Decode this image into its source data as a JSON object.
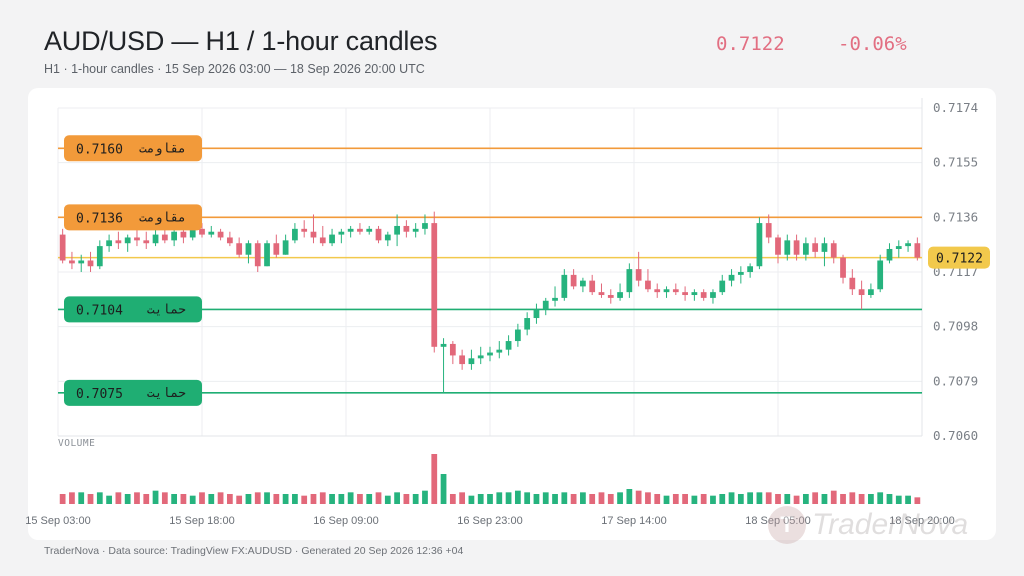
{
  "header": {
    "title": "AUD/USD — H1 / 1-hour candles",
    "subtitle": "H1 · 1-hour candles · 15 Sep 2026 03:00 — 18 Sep 2026 20:00 UTC",
    "last_price": "0.7122",
    "change_pct": "-0.06%"
  },
  "footer": {
    "text": "TraderNova · Data source: TradingView FX:AUDUSD · Generated 20 Sep 2026 12:36 +04"
  },
  "watermark": {
    "text": "TraderNova"
  },
  "colors": {
    "up": "#26b37e",
    "down": "#e2687a",
    "resistance": "#f29a3a",
    "support": "#1fae73",
    "current": "#f2c94c"
  },
  "chart_data": {
    "type": "candlestick",
    "symbol": "AUD/USD",
    "interval": "H1",
    "ylim": [
      0.706,
      0.7174
    ],
    "y_ticks": [
      "0.7174",
      "0.7155",
      "0.7136",
      "0.7117",
      "0.7098",
      "0.7079",
      "0.7060"
    ],
    "x_ticks": [
      "15 Sep 03:00",
      "15 Sep 18:00",
      "16 Sep 09:00",
      "16 Sep 23:00",
      "17 Sep 14:00",
      "18 Sep 05:00",
      "18 Sep 20:00"
    ],
    "current_price": {
      "label": "0.7122",
      "value": 0.7122
    },
    "levels": [
      {
        "type": "resistance",
        "label_ar": "مقاومت",
        "price": "0.7160",
        "value": 0.716
      },
      {
        "type": "resistance",
        "label_ar": "مقاومت",
        "price": "0.7136",
        "value": 0.7136
      },
      {
        "type": "support",
        "label_ar": "حمایت",
        "price": "0.7104",
        "value": 0.7104
      },
      {
        "type": "support",
        "label_ar": "حمایت",
        "price": "0.7075",
        "value": 0.7075
      }
    ],
    "volume_label": "VOLUME",
    "candles": [
      {
        "o": 0.713,
        "h": 0.7132,
        "l": 0.712,
        "c": 0.7121,
        "v": 6
      },
      {
        "o": 0.7121,
        "h": 0.7124,
        "l": 0.7118,
        "c": 0.712,
        "v": 7
      },
      {
        "o": 0.712,
        "h": 0.7123,
        "l": 0.7117,
        "c": 0.7121,
        "v": 7
      },
      {
        "o": 0.7121,
        "h": 0.7124,
        "l": 0.7117,
        "c": 0.7119,
        "v": 6
      },
      {
        "o": 0.7119,
        "h": 0.7128,
        "l": 0.7118,
        "c": 0.7126,
        "v": 7
      },
      {
        "o": 0.7126,
        "h": 0.713,
        "l": 0.7124,
        "c": 0.7128,
        "v": 5
      },
      {
        "o": 0.7128,
        "h": 0.7131,
        "l": 0.7125,
        "c": 0.7127,
        "v": 7
      },
      {
        "o": 0.7127,
        "h": 0.713,
        "l": 0.7124,
        "c": 0.7129,
        "v": 6
      },
      {
        "o": 0.7129,
        "h": 0.7132,
        "l": 0.7126,
        "c": 0.7128,
        "v": 7
      },
      {
        "o": 0.7128,
        "h": 0.7131,
        "l": 0.7125,
        "c": 0.7127,
        "v": 6
      },
      {
        "o": 0.7127,
        "h": 0.7132,
        "l": 0.7126,
        "c": 0.713,
        "v": 8
      },
      {
        "o": 0.713,
        "h": 0.7133,
        "l": 0.7127,
        "c": 0.7128,
        "v": 7
      },
      {
        "o": 0.7128,
        "h": 0.7132,
        "l": 0.7126,
        "c": 0.7131,
        "v": 6
      },
      {
        "o": 0.7131,
        "h": 0.7134,
        "l": 0.7127,
        "c": 0.7129,
        "v": 6
      },
      {
        "o": 0.7129,
        "h": 0.7133,
        "l": 0.7128,
        "c": 0.7132,
        "v": 5
      },
      {
        "o": 0.7132,
        "h": 0.7134,
        "l": 0.7129,
        "c": 0.713,
        "v": 7
      },
      {
        "o": 0.713,
        "h": 0.7133,
        "l": 0.7129,
        "c": 0.7131,
        "v": 6
      },
      {
        "o": 0.7131,
        "h": 0.7132,
        "l": 0.7128,
        "c": 0.7129,
        "v": 7
      },
      {
        "o": 0.7129,
        "h": 0.7131,
        "l": 0.7126,
        "c": 0.7127,
        "v": 6
      },
      {
        "o": 0.7127,
        "h": 0.7129,
        "l": 0.7122,
        "c": 0.7123,
        "v": 5
      },
      {
        "o": 0.7123,
        "h": 0.7128,
        "l": 0.712,
        "c": 0.7127,
        "v": 6
      },
      {
        "o": 0.7127,
        "h": 0.7128,
        "l": 0.7117,
        "c": 0.7119,
        "v": 7
      },
      {
        "o": 0.7119,
        "h": 0.7128,
        "l": 0.7119,
        "c": 0.7127,
        "v": 7
      },
      {
        "o": 0.7127,
        "h": 0.713,
        "l": 0.7122,
        "c": 0.7123,
        "v": 6
      },
      {
        "o": 0.7123,
        "h": 0.713,
        "l": 0.7123,
        "c": 0.7128,
        "v": 6
      },
      {
        "o": 0.7128,
        "h": 0.7134,
        "l": 0.7127,
        "c": 0.7132,
        "v": 6
      },
      {
        "o": 0.7132,
        "h": 0.7135,
        "l": 0.7129,
        "c": 0.7131,
        "v": 5
      },
      {
        "o": 0.7131,
        "h": 0.7137,
        "l": 0.7127,
        "c": 0.7129,
        "v": 6
      },
      {
        "o": 0.7129,
        "h": 0.7133,
        "l": 0.7126,
        "c": 0.7127,
        "v": 7
      },
      {
        "o": 0.7127,
        "h": 0.7132,
        "l": 0.7126,
        "c": 0.713,
        "v": 6
      },
      {
        "o": 0.713,
        "h": 0.7132,
        "l": 0.7127,
        "c": 0.7131,
        "v": 6
      },
      {
        "o": 0.7131,
        "h": 0.7133,
        "l": 0.7129,
        "c": 0.7132,
        "v": 7
      },
      {
        "o": 0.7132,
        "h": 0.7134,
        "l": 0.713,
        "c": 0.7131,
        "v": 6
      },
      {
        "o": 0.7131,
        "h": 0.7133,
        "l": 0.713,
        "c": 0.7132,
        "v": 6
      },
      {
        "o": 0.7132,
        "h": 0.7133,
        "l": 0.7127,
        "c": 0.7128,
        "v": 7
      },
      {
        "o": 0.7128,
        "h": 0.7131,
        "l": 0.7126,
        "c": 0.713,
        "v": 5
      },
      {
        "o": 0.713,
        "h": 0.7137,
        "l": 0.7126,
        "c": 0.7133,
        "v": 7
      },
      {
        "o": 0.7133,
        "h": 0.7135,
        "l": 0.7129,
        "c": 0.7131,
        "v": 6
      },
      {
        "o": 0.7131,
        "h": 0.7134,
        "l": 0.7129,
        "c": 0.7132,
        "v": 6
      },
      {
        "o": 0.7132,
        "h": 0.7137,
        "l": 0.713,
        "c": 0.7134,
        "v": 8
      },
      {
        "o": 0.7134,
        "h": 0.7138,
        "l": 0.7089,
        "c": 0.7091,
        "v": 30
      },
      {
        "o": 0.7091,
        "h": 0.7094,
        "l": 0.7075,
        "c": 0.7092,
        "v": 18
      },
      {
        "o": 0.7092,
        "h": 0.7093,
        "l": 0.7085,
        "c": 0.7088,
        "v": 6
      },
      {
        "o": 0.7088,
        "h": 0.709,
        "l": 0.7083,
        "c": 0.7085,
        "v": 7
      },
      {
        "o": 0.7085,
        "h": 0.709,
        "l": 0.7083,
        "c": 0.7087,
        "v": 5
      },
      {
        "o": 0.7087,
        "h": 0.7091,
        "l": 0.7085,
        "c": 0.7088,
        "v": 6
      },
      {
        "o": 0.7088,
        "h": 0.7091,
        "l": 0.7086,
        "c": 0.7089,
        "v": 6
      },
      {
        "o": 0.7089,
        "h": 0.7093,
        "l": 0.7087,
        "c": 0.709,
        "v": 7
      },
      {
        "o": 0.709,
        "h": 0.7095,
        "l": 0.7088,
        "c": 0.7093,
        "v": 7
      },
      {
        "o": 0.7093,
        "h": 0.7099,
        "l": 0.7091,
        "c": 0.7097,
        "v": 8
      },
      {
        "o": 0.7097,
        "h": 0.7103,
        "l": 0.7095,
        "c": 0.7101,
        "v": 7
      },
      {
        "o": 0.7101,
        "h": 0.7106,
        "l": 0.7099,
        "c": 0.7104,
        "v": 6
      },
      {
        "o": 0.7104,
        "h": 0.7108,
        "l": 0.7102,
        "c": 0.7107,
        "v": 7
      },
      {
        "o": 0.7107,
        "h": 0.7112,
        "l": 0.7105,
        "c": 0.7108,
        "v": 6
      },
      {
        "o": 0.7108,
        "h": 0.7118,
        "l": 0.7107,
        "c": 0.7116,
        "v": 7
      },
      {
        "o": 0.7116,
        "h": 0.7118,
        "l": 0.7111,
        "c": 0.7112,
        "v": 6
      },
      {
        "o": 0.7112,
        "h": 0.7115,
        "l": 0.711,
        "c": 0.7114,
        "v": 7
      },
      {
        "o": 0.7114,
        "h": 0.7116,
        "l": 0.7109,
        "c": 0.711,
        "v": 6
      },
      {
        "o": 0.711,
        "h": 0.7113,
        "l": 0.7108,
        "c": 0.7109,
        "v": 7
      },
      {
        "o": 0.7109,
        "h": 0.7111,
        "l": 0.7106,
        "c": 0.7108,
        "v": 6
      },
      {
        "o": 0.7108,
        "h": 0.7113,
        "l": 0.7107,
        "c": 0.711,
        "v": 7
      },
      {
        "o": 0.711,
        "h": 0.712,
        "l": 0.7108,
        "c": 0.7118,
        "v": 9
      },
      {
        "o": 0.7118,
        "h": 0.7124,
        "l": 0.7112,
        "c": 0.7114,
        "v": 8
      },
      {
        "o": 0.7114,
        "h": 0.7118,
        "l": 0.711,
        "c": 0.7111,
        "v": 7
      },
      {
        "o": 0.7111,
        "h": 0.7113,
        "l": 0.7108,
        "c": 0.711,
        "v": 6
      },
      {
        "o": 0.711,
        "h": 0.7112,
        "l": 0.7108,
        "c": 0.7111,
        "v": 5
      },
      {
        "o": 0.7111,
        "h": 0.7113,
        "l": 0.7109,
        "c": 0.711,
        "v": 6
      },
      {
        "o": 0.711,
        "h": 0.7112,
        "l": 0.7107,
        "c": 0.7109,
        "v": 6
      },
      {
        "o": 0.7109,
        "h": 0.7111,
        "l": 0.7107,
        "c": 0.711,
        "v": 5
      },
      {
        "o": 0.711,
        "h": 0.7111,
        "l": 0.7107,
        "c": 0.7108,
        "v": 6
      },
      {
        "o": 0.7108,
        "h": 0.7111,
        "l": 0.7106,
        "c": 0.711,
        "v": 5
      },
      {
        "o": 0.711,
        "h": 0.7116,
        "l": 0.7109,
        "c": 0.7114,
        "v": 6
      },
      {
        "o": 0.7114,
        "h": 0.7118,
        "l": 0.7112,
        "c": 0.7116,
        "v": 7
      },
      {
        "o": 0.7116,
        "h": 0.7119,
        "l": 0.7113,
        "c": 0.7117,
        "v": 6
      },
      {
        "o": 0.7117,
        "h": 0.712,
        "l": 0.7115,
        "c": 0.7119,
        "v": 7
      },
      {
        "o": 0.7119,
        "h": 0.7136,
        "l": 0.7118,
        "c": 0.7134,
        "v": 7
      },
      {
        "o": 0.7134,
        "h": 0.7137,
        "l": 0.7127,
        "c": 0.7129,
        "v": 7
      },
      {
        "o": 0.7129,
        "h": 0.713,
        "l": 0.712,
        "c": 0.7123,
        "v": 6
      },
      {
        "o": 0.7123,
        "h": 0.713,
        "l": 0.7121,
        "c": 0.7128,
        "v": 6
      },
      {
        "o": 0.7128,
        "h": 0.713,
        "l": 0.7121,
        "c": 0.7123,
        "v": 5
      },
      {
        "o": 0.7123,
        "h": 0.7129,
        "l": 0.7121,
        "c": 0.7127,
        "v": 6
      },
      {
        "o": 0.7127,
        "h": 0.7129,
        "l": 0.7122,
        "c": 0.7124,
        "v": 7
      },
      {
        "o": 0.7124,
        "h": 0.7129,
        "l": 0.7119,
        "c": 0.7127,
        "v": 6
      },
      {
        "o": 0.7127,
        "h": 0.7128,
        "l": 0.712,
        "c": 0.7122,
        "v": 8
      },
      {
        "o": 0.7122,
        "h": 0.7123,
        "l": 0.7113,
        "c": 0.7115,
        "v": 6
      },
      {
        "o": 0.7115,
        "h": 0.7118,
        "l": 0.7109,
        "c": 0.7111,
        "v": 7
      },
      {
        "o": 0.7111,
        "h": 0.7114,
        "l": 0.7104,
        "c": 0.7109,
        "v": 6
      },
      {
        "o": 0.7109,
        "h": 0.7113,
        "l": 0.7108,
        "c": 0.7111,
        "v": 6
      },
      {
        "o": 0.7111,
        "h": 0.7123,
        "l": 0.711,
        "c": 0.7121,
        "v": 7
      },
      {
        "o": 0.7121,
        "h": 0.7127,
        "l": 0.712,
        "c": 0.7125,
        "v": 6
      },
      {
        "o": 0.7125,
        "h": 0.7128,
        "l": 0.7122,
        "c": 0.7126,
        "v": 5
      },
      {
        "o": 0.7126,
        "h": 0.7128,
        "l": 0.7124,
        "c": 0.7127,
        "v": 5
      },
      {
        "o": 0.7127,
        "h": 0.7129,
        "l": 0.7121,
        "c": 0.7122,
        "v": 4
      }
    ]
  }
}
